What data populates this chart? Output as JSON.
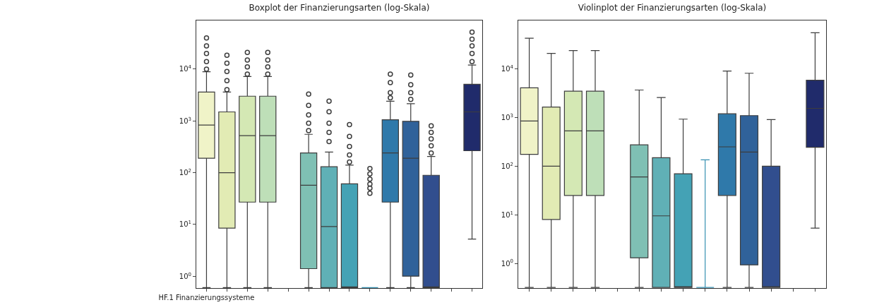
{
  "chart_data": [
    {
      "type": "box",
      "title": "Boxplot der Finanzierungsarten (log-Skala)",
      "categories": [
        "HF.1 Finanzierungssysteme",
        null,
        null,
        null,
        null,
        null,
        null,
        null,
        null,
        null,
        null,
        null,
        null,
        null
      ],
      "colors": [
        "#f0f3c8",
        "#e2ebb4",
        "#d4e8b4",
        "#bedfb8",
        null,
        "#7fc0b4",
        "#60b0b6",
        "#44a2b5",
        "#3690b1",
        "#2f79aa",
        "#30629a",
        "#314e8e",
        null,
        "#202b6b"
      ],
      "boxes": [
        {
          "low": 0.6,
          "q1": 190,
          "median": 830,
          "q3": 3600,
          "high": 8900,
          "outliers": [
            10000,
            14000,
            20000,
            28000,
            40000
          ]
        },
        {
          "low": 0.6,
          "q1": 8.5,
          "median": 100,
          "q3": 1490,
          "high": 3600,
          "outliers": [
            4000,
            6000,
            9000,
            13000,
            18500
          ]
        },
        {
          "low": 0.6,
          "q1": 27,
          "median": 520,
          "q3": 3000,
          "high": 7200,
          "outliers": [
            8000,
            11000,
            15000,
            21000
          ]
        },
        {
          "low": 0.6,
          "q1": 27,
          "median": 520,
          "q3": 3000,
          "high": 7200,
          "outliers": [
            8000,
            11000,
            15000,
            21000
          ]
        },
        null,
        {
          "low": 0.6,
          "q1": 1.4,
          "median": 57,
          "q3": 240,
          "high": 550,
          "outliers": [
            650,
            900,
            1300,
            2000,
            3300
          ]
        },
        {
          "low": 0.6,
          "q1": 0.6,
          "median": 9.1,
          "q3": 130,
          "high": 250,
          "outliers": [
            400,
            600,
            900,
            1500,
            2400
          ]
        },
        {
          "low": 0.6,
          "q1": 0.6,
          "median": 0.6,
          "q3": 61,
          "high": 140,
          "outliers": [
            160,
            220,
            320,
            500,
            850
          ]
        },
        {
          "low": 0.6,
          "q1": 0.6,
          "median": 0.6,
          "q3": 0.6,
          "high": 0.6,
          "outliers": [
            40,
            50,
            60,
            75,
            95,
            120
          ]
        },
        {
          "low": 0.6,
          "q1": 27,
          "median": 240,
          "q3": 1050,
          "high": 2400,
          "outliers": [
            2800,
            3500,
            5500,
            8000
          ]
        },
        {
          "low": 0.6,
          "q1": 1,
          "median": 190,
          "q3": 980,
          "high": 2150,
          "outliers": [
            2600,
            3500,
            5000,
            7700
          ]
        },
        {
          "low": 0.6,
          "q1": 0.6,
          "median": 0.6,
          "q3": 89,
          "high": 205,
          "outliers": [
            240,
            330,
            450,
            600,
            800
          ]
        },
        null,
        {
          "low": 5.2,
          "q1": 265,
          "median": 1490,
          "q3": 5100,
          "high": 12000,
          "outliers": [
            14000,
            20000,
            28000,
            38000,
            52000
          ]
        }
      ],
      "ylim": [
        0.59,
        87000
      ],
      "log": true,
      "grid": false,
      "yticks": [
        {
          "value": 1,
          "label": "10$^{0}$"
        },
        {
          "value": 10,
          "label": "10$^{1}$"
        },
        {
          "value": 100,
          "label": "10$^{2}$"
        },
        {
          "value": 1000,
          "label": "10$^{3}$"
        },
        {
          "value": 10000,
          "label": "10$^{4}$"
        }
      ]
    },
    {
      "type": "box",
      "title": "Violinplot der Finanzierungsarten (log-Skala)",
      "categories": [
        null,
        null,
        null,
        null,
        null,
        null,
        null,
        null,
        null,
        null,
        null,
        null,
        null,
        null
      ],
      "colors": [
        "#f0f3c8",
        "#e2ebb4",
        "#d4e8b4",
        "#bedfb8",
        null,
        "#7fc0b4",
        "#60b0b6",
        "#44a2b5",
        "#3690b1",
        "#2f79aa",
        "#30629a",
        "#314e8e",
        null,
        "#202b6b"
      ],
      "boxes": [
        {
          "low": 0.32,
          "q1": 175,
          "median": 850,
          "q3": 4100,
          "high": 43000
        },
        {
          "low": 0.32,
          "q1": 8,
          "median": 100,
          "q3": 1650,
          "high": 21000
        },
        {
          "low": 0.32,
          "q1": 25,
          "median": 535,
          "q3": 3500,
          "high": 24000
        },
        {
          "low": 0.32,
          "q1": 25,
          "median": 535,
          "q3": 3500,
          "high": 24000
        },
        null,
        {
          "low": 0.32,
          "q1": 1.3,
          "median": 60,
          "q3": 275,
          "high": 3700
        },
        {
          "low": 0.32,
          "q1": 0.32,
          "median": 9.5,
          "q3": 150,
          "high": 2600
        },
        {
          "low": 0.32,
          "q1": 0.32,
          "median": 0.32,
          "q3": 70,
          "high": 930
        },
        {
          "low": 0.32,
          "q1": 0.32,
          "median": 0.32,
          "q3": 0.32,
          "high": 135
        },
        {
          "low": 0.32,
          "q1": 25,
          "median": 250,
          "q3": 1200,
          "high": 9100
        },
        {
          "low": 0.32,
          "q1": 0.93,
          "median": 195,
          "q3": 1100,
          "high": 8200
        },
        {
          "low": 0.32,
          "q1": 0.32,
          "median": 0.32,
          "q3": 100,
          "high": 910
        },
        null,
        {
          "low": 5.3,
          "q1": 245,
          "median": 1550,
          "q3": 5900,
          "high": 56000
        }
      ],
      "ylim": [
        0.31,
        100000
      ],
      "log": true,
      "grid": false,
      "yticks": [
        {
          "value": 1,
          "label": "10$^{0}$"
        },
        {
          "value": 10,
          "label": "10$^{1}$"
        },
        {
          "value": 100,
          "label": "10$^{2}$"
        },
        {
          "value": 1000,
          "label": "10$^{3}$"
        },
        {
          "value": 10000,
          "label": "10$^{4}$"
        }
      ]
    }
  ]
}
